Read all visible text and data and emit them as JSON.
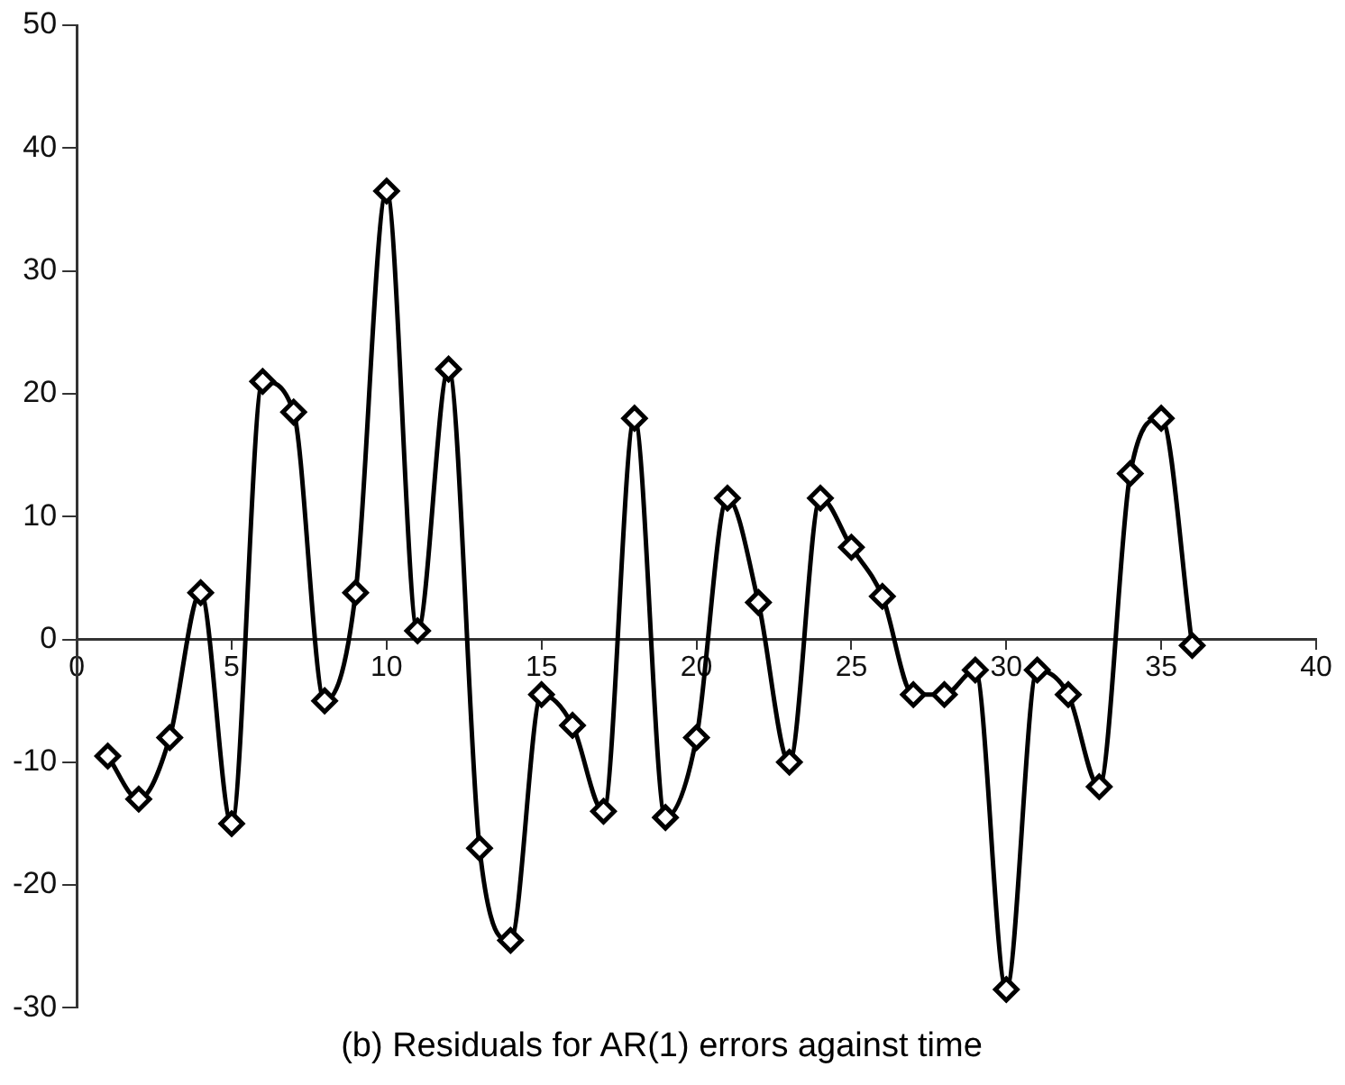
{
  "chart_data": {
    "type": "line",
    "title": "(b) Residuals for AR(1) errors against time",
    "x": [
      1,
      2,
      3,
      4,
      5,
      6,
      7,
      8,
      9,
      10,
      11,
      12,
      13,
      14,
      15,
      16,
      17,
      18,
      19,
      20,
      21,
      22,
      23,
      24,
      25,
      26,
      27,
      28,
      29,
      30,
      31,
      32,
      33,
      34,
      35,
      36
    ],
    "series": [
      {
        "color": "#000000",
        "values": [
          -9.5,
          -13,
          -8,
          3.8,
          -15,
          21,
          18.5,
          -5,
          3.8,
          36.5,
          0.7,
          22,
          -17,
          -24.5,
          -4.5,
          -7,
          -14,
          18,
          -14.5,
          -8,
          11.5,
          3,
          -10,
          11.5,
          7.5,
          3.5,
          -4.5,
          -4.5,
          -2.5,
          -28.5,
          -2.5,
          -4.5,
          -12,
          13.5,
          18,
          -0.5
        ]
      }
    ],
    "xlim": [
      0,
      40
    ],
    "xticks": [
      0,
      5,
      10,
      15,
      20,
      25,
      30,
      35,
      40
    ],
    "ylim": [
      -30,
      50
    ],
    "yticks": [
      -30,
      -20,
      -10,
      0,
      10,
      20,
      30,
      40,
      50
    ],
    "grid": false,
    "legend": false,
    "marker": "diamond",
    "line_style": "solid"
  }
}
